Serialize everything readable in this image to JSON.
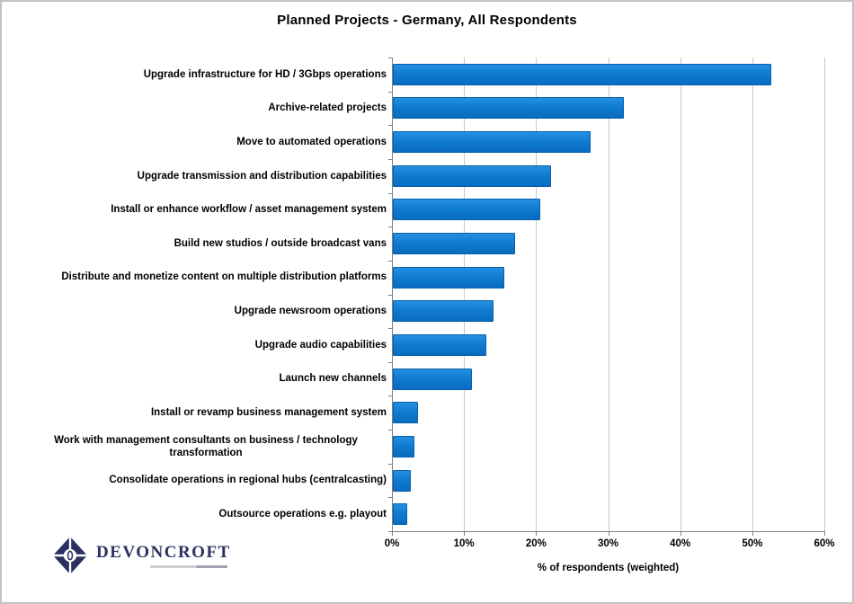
{
  "page": {
    "background": "#ffffff",
    "border_color": "#c2c2c2"
  },
  "chart_data": {
    "type": "bar",
    "orientation": "horizontal",
    "title": "Planned Projects - Germany, All Respondents",
    "xlabel": "% of respondents (weighted)",
    "xlim": [
      0,
      60
    ],
    "xtick_step": 10,
    "xtick_labels": [
      "0%",
      "10%",
      "20%",
      "30%",
      "40%",
      "50%",
      "60%"
    ],
    "grid": "vertical",
    "legend": "none",
    "bar_color": "#0f7cd1",
    "categories": [
      "Upgrade infrastructure for HD / 3Gbps operations",
      "Archive-related projects",
      "Move to automated operations",
      "Upgrade transmission and distribution capabilities",
      "Install or enhance workflow / asset management system",
      "Build new studios / outside broadcast vans",
      "Distribute and monetize content on multiple distribution platforms",
      "Upgrade newsroom operations",
      "Upgrade audio capabilities",
      "Launch new channels",
      "Install or revamp business management system",
      "Work with management consultants on business / technology transformation",
      "Consolidate operations in regional hubs (centralcasting)",
      "Outsource operations e.g. playout"
    ],
    "values": [
      52.5,
      32,
      27.5,
      22,
      20.5,
      17,
      15.5,
      14,
      13,
      11,
      3.5,
      3,
      2.5,
      2
    ]
  },
  "logo": {
    "text": "DEVONCROFT",
    "color": "#2a3160",
    "icon": "diamond-icon"
  }
}
